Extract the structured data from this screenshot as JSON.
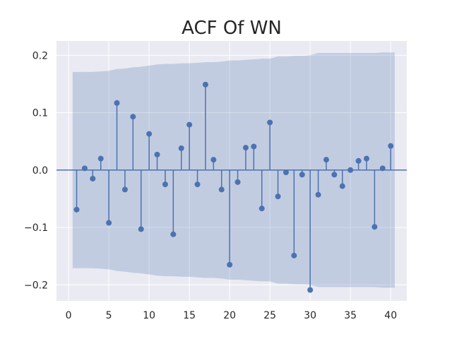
{
  "chart_data": {
    "type": "stem",
    "title": "ACF Of WN",
    "xlabel": "",
    "ylabel": "",
    "xlim": [
      -1.5,
      42
    ],
    "ylim": [
      -0.228,
      0.225
    ],
    "xticks": [
      0,
      5,
      10,
      15,
      20,
      25,
      30,
      35,
      40
    ],
    "yticks": [
      -0.2,
      -0.1,
      0.0,
      0.1,
      0.2
    ],
    "ytick_labels": [
      "−0.2",
      "−0.1",
      "0.0",
      "0.1",
      "0.2"
    ],
    "grid": true,
    "series": [
      {
        "lags": [
          1,
          2,
          3,
          4,
          5,
          6,
          7,
          8,
          9,
          10,
          11,
          12,
          13,
          14,
          15,
          16,
          17,
          18,
          19,
          20,
          21,
          22,
          23,
          24,
          25,
          26,
          27,
          28,
          29,
          30,
          31,
          32,
          33,
          34,
          35,
          36,
          37,
          38,
          39,
          40
        ],
        "values": [
          -0.069,
          0.003,
          -0.015,
          0.02,
          -0.092,
          0.117,
          -0.034,
          0.093,
          -0.103,
          0.063,
          0.027,
          -0.025,
          -0.112,
          0.038,
          0.079,
          -0.025,
          0.149,
          0.018,
          -0.034,
          -0.165,
          -0.021,
          0.039,
          0.041,
          -0.067,
          0.083,
          -0.046,
          -0.004,
          -0.149,
          -0.008,
          -0.209,
          -0.043,
          0.018,
          -0.008,
          -0.028,
          0.0,
          0.016,
          0.02,
          -0.099,
          0.003,
          0.042
        ]
      }
    ],
    "confidence_band": {
      "lags": [
        0.5,
        1,
        2,
        3,
        4,
        5,
        6,
        7,
        8,
        9,
        10,
        11,
        12,
        13,
        14,
        15,
        16,
        17,
        18,
        19,
        20,
        21,
        22,
        23,
        24,
        25,
        26,
        27,
        28,
        29,
        30,
        31,
        32,
        33,
        34,
        35,
        36,
        37,
        38,
        39,
        40,
        40.5
      ],
      "upper": [
        0.171,
        0.171,
        0.171,
        0.171,
        0.172,
        0.173,
        0.176,
        0.177,
        0.179,
        0.18,
        0.182,
        0.184,
        0.185,
        0.185,
        0.186,
        0.186,
        0.187,
        0.188,
        0.188,
        0.189,
        0.191,
        0.191,
        0.192,
        0.193,
        0.194,
        0.194,
        0.198,
        0.198,
        0.199,
        0.199,
        0.2,
        0.204,
        0.204,
        0.204,
        0.204,
        0.204,
        0.204,
        0.204,
        0.204,
        0.205,
        0.205,
        0.205
      ],
      "lower": [
        -0.171,
        -0.171,
        -0.171,
        -0.171,
        -0.172,
        -0.173,
        -0.176,
        -0.177,
        -0.179,
        -0.18,
        -0.182,
        -0.184,
        -0.185,
        -0.185,
        -0.186,
        -0.186,
        -0.187,
        -0.188,
        -0.188,
        -0.189,
        -0.191,
        -0.191,
        -0.192,
        -0.193,
        -0.194,
        -0.194,
        -0.198,
        -0.198,
        -0.199,
        -0.199,
        -0.2,
        -0.204,
        -0.204,
        -0.204,
        -0.204,
        -0.204,
        -0.204,
        -0.204,
        -0.204,
        -0.205,
        -0.205,
        -0.205
      ]
    },
    "colors": {
      "background": "#eaeaf2",
      "grid": "#ffffff",
      "stem": "#4c72b0",
      "band": "#4c72b0"
    }
  }
}
